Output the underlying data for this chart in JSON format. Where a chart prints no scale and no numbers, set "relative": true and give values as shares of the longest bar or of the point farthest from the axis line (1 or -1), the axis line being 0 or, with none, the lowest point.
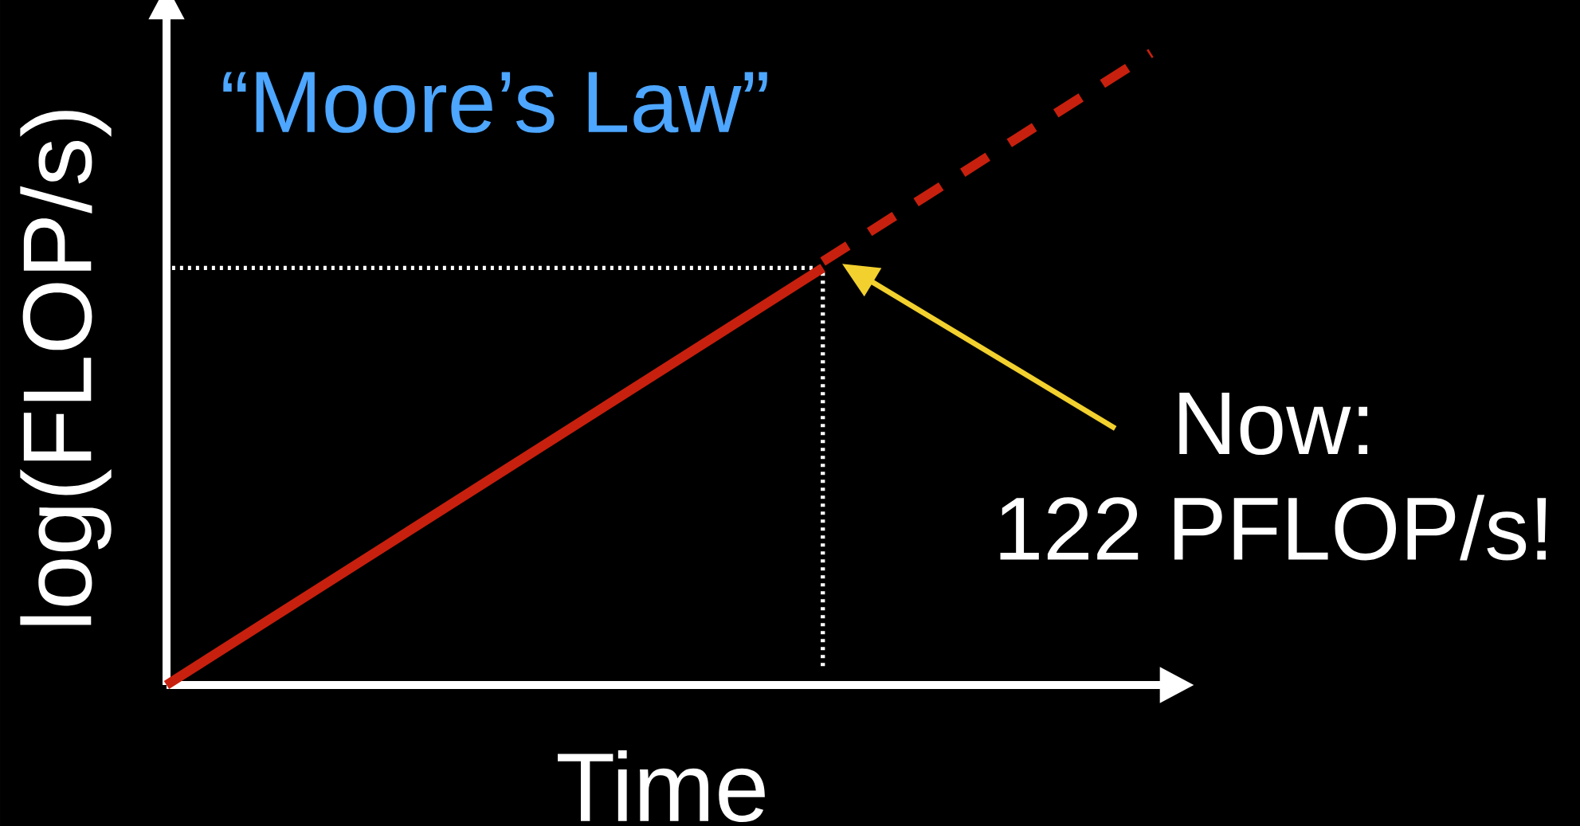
{
  "chart_data": {
    "type": "line",
    "relative": true,
    "title": "“Moore’s Law”",
    "xlabel": "Time",
    "ylabel": "log(FLOP/s)",
    "categories": [
      null,
      null,
      null,
      null,
      null,
      null,
      null,
      null,
      null,
      null
    ],
    "series": [
      {
        "color": "#c8200e",
        "line_style": "solid",
        "values": [
          0.0,
          0.11,
          0.22,
          0.33,
          0.44,
          0.55,
          0.66,
          null,
          null,
          null
        ]
      },
      {
        "color": "#c8200e",
        "line_style": "dashed",
        "values": [
          null,
          null,
          null,
          null,
          null,
          null,
          0.67,
          0.78,
          0.89,
          1.0
        ]
      }
    ],
    "ref_lines": [
      {
        "axis": "y",
        "value": 0.66,
        "color": "#ffffff",
        "line_style": "dotted"
      }
    ],
    "annotations": [
      "Now:",
      "122 PFLOP/s!"
    ]
  }
}
